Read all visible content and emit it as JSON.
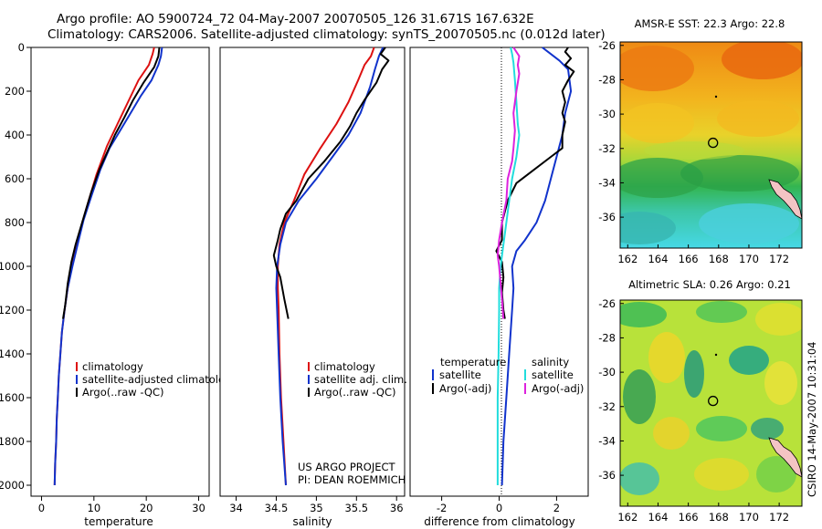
{
  "header": {
    "line1": "Argo profile: AO 5900724_72 04-May-2007 20070505_126 31.671S 167.632E",
    "line2": "Climatology: CARS2006. Satellite-adjusted climatology: synTS_20070505.nc (0.012d later)"
  },
  "colors": {
    "clim": "#dd1111",
    "sat": "#1133cc",
    "argo": "#000000",
    "sat_s": "#22dddd",
    "argo_s": "#dd22dd"
  },
  "credit": {
    "line1": "US ARGO PROJECT",
    "line2": "PI: DEAN ROEMMICH"
  },
  "stamp": "CSIRO 14-May-2007 10:31:04",
  "chart_data": [
    {
      "type": "line",
      "xlabel": "temperature",
      "xlim": [
        -2,
        32
      ],
      "ylim": [
        2050,
        0
      ],
      "xticks": [
        0,
        10,
        20,
        30
      ],
      "yticks": [
        0,
        200,
        400,
        600,
        800,
        1000,
        1200,
        1400,
        1600,
        1800,
        2000
      ],
      "legend": [
        "climatology",
        "satellite-adjusted climatology",
        "Argo(..raw -QC)"
      ],
      "series": [
        {
          "name": "climatology",
          "color": "clim",
          "points": [
            [
              21.5,
              0
            ],
            [
              21.2,
              30
            ],
            [
              20.5,
              80
            ],
            [
              18.5,
              150
            ],
            [
              16.5,
              250
            ],
            [
              14.5,
              350
            ],
            [
              12.5,
              450
            ],
            [
              10.5,
              580
            ],
            [
              9,
              700
            ],
            [
              7.8,
              800
            ],
            [
              6.8,
              900
            ],
            [
              5.8,
              1000
            ],
            [
              5,
              1100
            ],
            [
              4.4,
              1200
            ],
            [
              3.9,
              1300
            ],
            [
              3.6,
              1400
            ],
            [
              3.3,
              1500
            ],
            [
              3.1,
              1600
            ],
            [
              2.9,
              1700
            ],
            [
              2.8,
              1800
            ],
            [
              2.6,
              1900
            ],
            [
              2.5,
              2000
            ]
          ]
        },
        {
          "name": "satellite-adjusted climatology",
          "color": "sat",
          "points": [
            [
              23,
              0
            ],
            [
              22.8,
              40
            ],
            [
              22.3,
              80
            ],
            [
              21,
              150
            ],
            [
              19,
              220
            ],
            [
              17,
              300
            ],
            [
              15,
              380
            ],
            [
              13,
              460
            ],
            [
              11.2,
              560
            ],
            [
              9.5,
              680
            ],
            [
              8,
              790
            ],
            [
              6.9,
              900
            ],
            [
              5.9,
              1000
            ],
            [
              5,
              1100
            ],
            [
              4.4,
              1200
            ],
            [
              3.9,
              1300
            ],
            [
              3.6,
              1400
            ],
            [
              3.3,
              1500
            ],
            [
              3.1,
              1600
            ],
            [
              2.9,
              1700
            ],
            [
              2.8,
              1800
            ],
            [
              2.6,
              1900
            ],
            [
              2.5,
              2000
            ]
          ]
        },
        {
          "name": "Argo(..raw -QC)",
          "color": "argo",
          "points": [
            [
              22.5,
              0
            ],
            [
              22.3,
              40
            ],
            [
              21.5,
              90
            ],
            [
              19.5,
              160
            ],
            [
              17.5,
              240
            ],
            [
              15.8,
              320
            ],
            [
              14,
              400
            ],
            [
              12.5,
              480
            ],
            [
              11,
              560
            ],
            [
              9.5,
              660
            ],
            [
              8.5,
              740
            ],
            [
              7.5,
              820
            ],
            [
              6.5,
              900
            ],
            [
              5.7,
              980
            ],
            [
              5,
              1080
            ],
            [
              4.5,
              1180
            ],
            [
              4.1,
              1240
            ]
          ]
        }
      ]
    },
    {
      "type": "line",
      "xlabel": "salinity",
      "xlim": [
        33.8,
        36.1
      ],
      "ylim": [
        2050,
        0
      ],
      "xticks": [
        34,
        34.5,
        35,
        35.5,
        36
      ],
      "legend": [
        "climatology",
        "satellite adj. clim.",
        "Argo(..raw -QC)"
      ],
      "series": [
        {
          "name": "climatology",
          "color": "clim",
          "points": [
            [
              35.72,
              0
            ],
            [
              35.68,
              40
            ],
            [
              35.6,
              80
            ],
            [
              35.52,
              150
            ],
            [
              35.4,
              250
            ],
            [
              35.25,
              350
            ],
            [
              35.05,
              460
            ],
            [
              34.85,
              580
            ],
            [
              34.72,
              700
            ],
            [
              34.6,
              800
            ],
            [
              34.54,
              900
            ],
            [
              34.52,
              1000
            ],
            [
              34.52,
              1100
            ],
            [
              34.53,
              1200
            ],
            [
              34.54,
              1400
            ],
            [
              34.56,
              1600
            ],
            [
              34.59,
              1800
            ],
            [
              34.62,
              2000
            ]
          ]
        },
        {
          "name": "satellite adj. clim.",
          "color": "sat",
          "points": [
            [
              35.83,
              0
            ],
            [
              35.78,
              40
            ],
            [
              35.73,
              100
            ],
            [
              35.67,
              180
            ],
            [
              35.55,
              300
            ],
            [
              35.4,
              400
            ],
            [
              35.2,
              500
            ],
            [
              35,
              600
            ],
            [
              34.78,
              700
            ],
            [
              34.62,
              800
            ],
            [
              34.55,
              900
            ],
            [
              34.51,
              1000
            ],
            [
              34.5,
              1100
            ],
            [
              34.51,
              1200
            ],
            [
              34.53,
              1400
            ],
            [
              34.55,
              1600
            ],
            [
              34.58,
              1800
            ],
            [
              34.62,
              2000
            ]
          ]
        },
        {
          "name": "Argo(..raw -QC)",
          "color": "argo",
          "points": [
            [
              35.86,
              0
            ],
            [
              35.8,
              30
            ],
            [
              35.9,
              60
            ],
            [
              35.82,
              100
            ],
            [
              35.75,
              160
            ],
            [
              35.6,
              240
            ],
            [
              35.5,
              300
            ],
            [
              35.42,
              360
            ],
            [
              35.3,
              430
            ],
            [
              35.1,
              520
            ],
            [
              34.9,
              600
            ],
            [
              34.75,
              700
            ],
            [
              34.62,
              760
            ],
            [
              34.55,
              830
            ],
            [
              34.52,
              880
            ],
            [
              34.47,
              950
            ],
            [
              34.5,
              1000
            ],
            [
              34.55,
              1050
            ],
            [
              34.6,
              1150
            ],
            [
              34.65,
              1240
            ]
          ]
        }
      ]
    },
    {
      "type": "line",
      "xlabel": "difference from climatology",
      "xlim": [
        -3.1,
        3.1
      ],
      "ylim": [
        2050,
        0
      ],
      "xticks": [
        -2,
        0,
        2
      ],
      "legend_left_title": "temperature",
      "legend_right_title": "salinity",
      "legend": [
        "satellite",
        "Argo(-adj)",
        "satellite",
        "Argo(-adj)"
      ],
      "series": [
        {
          "name": "satellite",
          "color": "sat",
          "points": [
            [
              1.5,
              0
            ],
            [
              1.7,
              20
            ],
            [
              2.1,
              60
            ],
            [
              2.4,
              100
            ],
            [
              2.5,
              200
            ],
            [
              2.3,
              300
            ],
            [
              2.2,
              400
            ],
            [
              2,
              500
            ],
            [
              1.8,
              600
            ],
            [
              1.6,
              700
            ],
            [
              1.3,
              800
            ],
            [
              0.9,
              880
            ],
            [
              0.6,
              930
            ],
            [
              0.45,
              1000
            ],
            [
              0.5,
              1100
            ],
            [
              0.45,
              1200
            ],
            [
              0.35,
              1400
            ],
            [
              0.25,
              1600
            ],
            [
              0.15,
              1800
            ],
            [
              0.1,
              2000
            ]
          ]
        },
        {
          "name": "Argo(-adj)",
          "color": "argo",
          "points": [
            [
              2.4,
              0
            ],
            [
              2.3,
              20
            ],
            [
              2.5,
              50
            ],
            [
              2.3,
              80
            ],
            [
              2.6,
              110
            ],
            [
              2.4,
              150
            ],
            [
              2.2,
              200
            ],
            [
              2.3,
              250
            ],
            [
              2.2,
              300
            ],
            [
              2.3,
              340
            ],
            [
              2.2,
              400
            ],
            [
              2.2,
              460
            ],
            [
              1.8,
              500
            ],
            [
              1.2,
              560
            ],
            [
              0.6,
              620
            ],
            [
              0.3,
              700
            ],
            [
              0.1,
              800
            ],
            [
              0.1,
              880
            ],
            [
              -0.1,
              930
            ],
            [
              0.1,
              980
            ],
            [
              0.15,
              1050
            ],
            [
              0.1,
              1120
            ],
            [
              0.15,
              1200
            ],
            [
              0.2,
              1240
            ]
          ]
        },
        {
          "name": "satellite",
          "color": "sat_s",
          "points": [
            [
              0.4,
              0
            ],
            [
              0.45,
              30
            ],
            [
              0.5,
              70
            ],
            [
              0.55,
              150
            ],
            [
              0.6,
              250
            ],
            [
              0.65,
              350
            ],
            [
              0.7,
              400
            ],
            [
              0.6,
              500
            ],
            [
              0.45,
              600
            ],
            [
              0.35,
              700
            ],
            [
              0.25,
              800
            ],
            [
              0.15,
              900
            ],
            [
              0.05,
              1000
            ],
            [
              0,
              1100
            ],
            [
              0,
              1200
            ],
            [
              -0.02,
              1400
            ],
            [
              -0.05,
              1600
            ],
            [
              -0.05,
              1800
            ],
            [
              -0.05,
              2000
            ]
          ]
        },
        {
          "name": "Argo(-adj)",
          "color": "argo_s",
          "points": [
            [
              0.5,
              0
            ],
            [
              0.7,
              40
            ],
            [
              0.65,
              80
            ],
            [
              0.7,
              120
            ],
            [
              0.6,
              200
            ],
            [
              0.5,
              300
            ],
            [
              0.55,
              380
            ],
            [
              0.5,
              460
            ],
            [
              0.45,
              520
            ],
            [
              0.3,
              600
            ],
            [
              0.25,
              700
            ],
            [
              0.1,
              800
            ],
            [
              0,
              880
            ],
            [
              -0.05,
              950
            ],
            [
              0,
              1000
            ],
            [
              0.05,
              1080
            ],
            [
              0.1,
              1150
            ],
            [
              0.15,
              1240
            ]
          ]
        }
      ]
    },
    {
      "type": "heatmap",
      "title": "AMSR-E SST: 22.3 Argo: 22.8",
      "xlim": [
        161.5,
        173.5
      ],
      "ylim": [
        -37.8,
        -25.8
      ],
      "xticks": [
        162,
        164,
        166,
        168,
        170,
        172
      ],
      "yticks": [
        -26,
        -28,
        -30,
        -32,
        -34,
        -36
      ],
      "marker": [
        167.632,
        -31.671
      ]
    },
    {
      "type": "heatmap",
      "title": "Altimetric SLA: 0.26 Argo: 0.21",
      "xlim": [
        161.5,
        173.5
      ],
      "ylim": [
        -37.8,
        -25.8
      ],
      "xticks": [
        162,
        164,
        166,
        168,
        170,
        172
      ],
      "yticks": [
        -26,
        -28,
        -30,
        -32,
        -34,
        -36
      ],
      "marker": [
        167.632,
        -31.671
      ]
    }
  ]
}
